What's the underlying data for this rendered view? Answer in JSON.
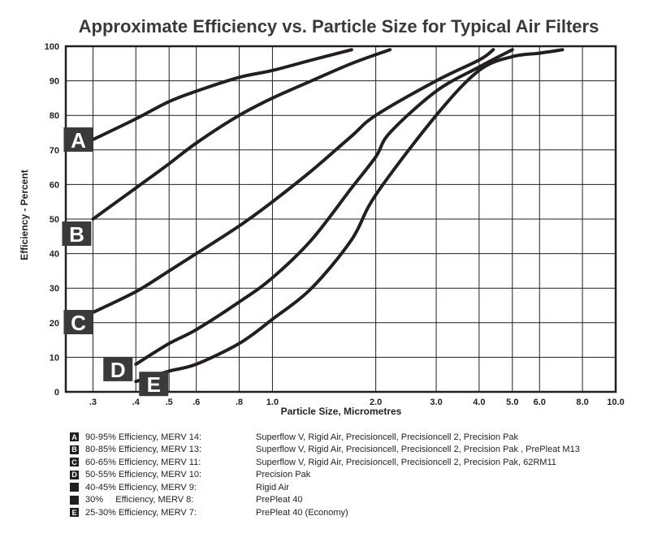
{
  "chart_data": {
    "type": "line",
    "title": "Approximate Efficiency vs. Particle Size  for Typical Air Filters",
    "xlabel": "Particle Size, Micrometres",
    "ylabel": "Efficiency - Percent",
    "xscale": "log",
    "xlim": [
      0.25,
      10.0
    ],
    "ylim": [
      0,
      100
    ],
    "grid": true,
    "x_ticks": [
      {
        "value": 0.3,
        "label": ".3"
      },
      {
        "value": 0.4,
        "label": ".4"
      },
      {
        "value": 0.5,
        "label": ".5"
      },
      {
        "value": 0.6,
        "label": ".6"
      },
      {
        "value": 0.8,
        "label": ".8"
      },
      {
        "value": 1.0,
        "label": "1.0"
      },
      {
        "value": 2.0,
        "label": "2.0"
      },
      {
        "value": 3.0,
        "label": "3.0"
      },
      {
        "value": 4.0,
        "label": "4.0"
      },
      {
        "value": 5.0,
        "label": "5.0"
      },
      {
        "value": 6.0,
        "label": "6.0"
      },
      {
        "value": 8.0,
        "label": "8.0"
      },
      {
        "value": 10.0,
        "label": "10.0"
      }
    ],
    "y_ticks": [
      0,
      10,
      20,
      30,
      40,
      50,
      60,
      70,
      80,
      90,
      100
    ],
    "series": [
      {
        "name": "A",
        "x": [
          0.3,
          0.4,
          0.5,
          0.6,
          0.8,
          1.0,
          1.3,
          1.7
        ],
        "y": [
          73,
          79,
          84,
          87,
          91,
          93,
          96,
          99
        ]
      },
      {
        "name": "B",
        "x": [
          0.3,
          0.4,
          0.5,
          0.6,
          0.8,
          1.0,
          1.3,
          1.7,
          2.2
        ],
        "y": [
          50,
          59,
          66,
          72,
          80,
          85,
          90,
          95,
          99
        ]
      },
      {
        "name": "C",
        "x": [
          0.3,
          0.4,
          0.5,
          0.6,
          0.8,
          1.0,
          1.3,
          1.7,
          2.0,
          3.0,
          4.0,
          4.4
        ],
        "y": [
          23,
          29,
          35,
          40,
          48,
          55,
          64,
          74,
          80,
          90,
          96,
          99
        ]
      },
      {
        "name": "D",
        "x": [
          0.4,
          0.5,
          0.6,
          0.8,
          1.0,
          1.3,
          1.7,
          2.0,
          2.2,
          3.0,
          4.0,
          5.0
        ],
        "y": [
          8,
          14,
          18,
          26,
          33,
          44,
          59,
          68,
          75,
          87,
          94,
          99
        ]
      },
      {
        "name": "E",
        "x": [
          0.4,
          0.5,
          0.6,
          0.8,
          1.0,
          1.3,
          1.7,
          2.0,
          3.0,
          4.0,
          5.0,
          6.0,
          7.0
        ],
        "y": [
          3,
          6,
          8,
          14,
          21,
          30,
          44,
          57,
          80,
          93,
          97,
          98,
          99
        ]
      }
    ],
    "labels": [
      {
        "text": "A",
        "series": "A"
      },
      {
        "text": "B",
        "series": "B"
      },
      {
        "text": "C",
        "series": "C"
      },
      {
        "text": "D",
        "series": "D"
      },
      {
        "text": "E",
        "series": "E"
      }
    ]
  },
  "legend": [
    {
      "box": "A",
      "efficiency": "90-95% Efficiency, MERV 14:",
      "products": "Superflow V, Rigid Air, Precisioncell, Precisioncell 2, Precision Pak"
    },
    {
      "box": "B",
      "efficiency": "80-85% Efficiency, MERV 13:",
      "products": "Superflow V, Rigid Air, Precisioncell, Precisioncell 2, Precision Pak , PrePleat M13"
    },
    {
      "box": "C",
      "efficiency": "60-65% Efficiency, MERV 11:",
      "products": "Superflow V, Rigid Air, Precisioncell, Precisioncell 2, Precision Pak, 62RM11"
    },
    {
      "box": "D",
      "efficiency": "50-55% Efficiency, MERV 10:",
      "products": "Precision Pak"
    },
    {
      "box": "",
      "efficiency": "40-45% Efficiency, MERV 9:",
      "products": "Rigid Air"
    },
    {
      "box": "",
      "efficiency": "30%     Efficiency, MERV 8:",
      "products": "PrePleat 40"
    },
    {
      "box": "E",
      "efficiency": "25-30% Efficiency, MERV 7:",
      "products": "PrePleat 40 (Economy)"
    }
  ],
  "colors": {
    "ink": "#231f20",
    "grid": "#231f20",
    "label_bg": "#3a3a3a"
  }
}
